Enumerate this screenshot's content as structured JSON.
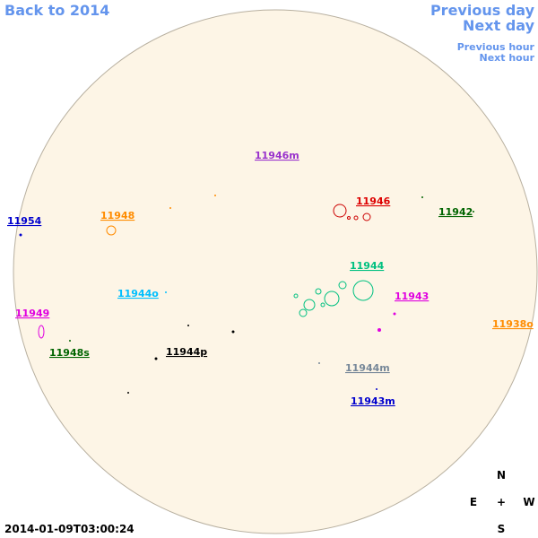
{
  "navigation": {
    "back": "Back to 2014",
    "previous_day": "Previous day",
    "next_day": "Next day",
    "previous_hour": "Previous hour",
    "next_hour": "Next hour"
  },
  "regions": [
    "11946m",
    "11946",
    "11942",
    "11954",
    "11948",
    "11944",
    "11944o",
    "11943",
    "11949",
    "11938o",
    "11948s",
    "11944p",
    "11944m",
    "11943m"
  ],
  "compass": {
    "north": "N",
    "east": "E",
    "center": "+",
    "west": "W",
    "south": "S"
  },
  "timestamp": "2014-01-09T03:00:24"
}
